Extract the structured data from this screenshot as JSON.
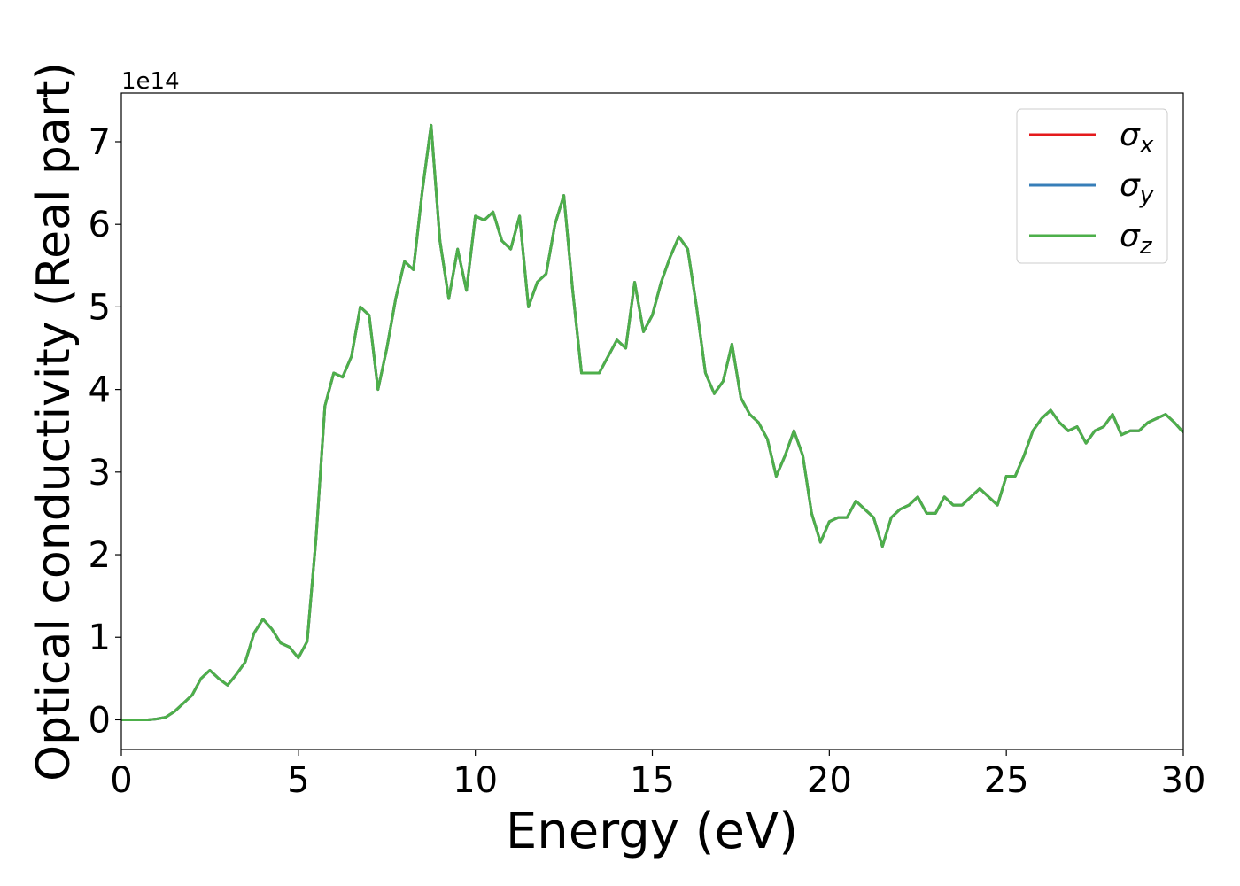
{
  "chart_data": {
    "type": "line",
    "xlabel": "Energy (eV)",
    "ylabel": "Optical conductivity (Real part)",
    "y_offset_label": "1e14",
    "xlim": [
      0,
      30
    ],
    "ylim": [
      -0.36,
      7.59
    ],
    "xticks": [
      0,
      5,
      10,
      15,
      20,
      25,
      30
    ],
    "yticks": [
      0,
      1,
      2,
      3,
      4,
      5,
      6,
      7
    ],
    "grid": false,
    "legend": "upper right",
    "x": [
      0,
      0.25,
      0.5,
      0.75,
      1,
      1.25,
      1.5,
      1.75,
      2,
      2.25,
      2.5,
      2.75,
      3,
      3.25,
      3.5,
      3.75,
      4,
      4.25,
      4.5,
      4.75,
      5,
      5.25,
      5.5,
      5.75,
      6,
      6.25,
      6.5,
      6.75,
      7,
      7.25,
      7.5,
      7.75,
      8,
      8.25,
      8.5,
      8.75,
      9,
      9.25,
      9.5,
      9.75,
      10,
      10.25,
      10.5,
      10.75,
      11,
      11.25,
      11.5,
      11.75,
      12,
      12.25,
      12.5,
      12.75,
      13,
      13.25,
      13.5,
      13.75,
      14,
      14.25,
      14.5,
      14.75,
      15,
      15.25,
      15.5,
      15.75,
      16,
      16.25,
      16.5,
      16.75,
      17,
      17.25,
      17.5,
      17.75,
      18,
      18.25,
      18.5,
      18.75,
      19,
      19.25,
      19.5,
      19.75,
      20,
      20.25,
      20.5,
      20.75,
      21,
      21.25,
      21.5,
      21.75,
      22,
      22.25,
      22.5,
      22.75,
      23,
      23.25,
      23.5,
      23.75,
      24,
      24.25,
      24.5,
      24.75,
      25,
      25.25,
      25.5,
      25.75,
      26,
      26.25,
      26.5,
      26.75,
      27,
      27.25,
      27.5,
      27.75,
      28,
      28.25,
      28.5,
      28.75,
      29,
      29.25,
      29.5,
      29.75,
      30
    ],
    "series": [
      {
        "name": "σx",
        "color": "#e41a1c",
        "values": [
          0,
          0,
          0,
          0,
          0.01,
          0.03,
          0.1,
          0.2,
          0.3,
          0.5,
          0.6,
          0.5,
          0.42,
          0.55,
          0.7,
          1.05,
          1.22,
          1.1,
          0.93,
          0.88,
          0.75,
          0.95,
          2.2,
          3.8,
          4.2,
          4.15,
          4.4,
          5.0,
          4.9,
          4.0,
          4.5,
          5.1,
          5.55,
          5.45,
          6.4,
          7.2,
          5.8,
          5.1,
          5.7,
          5.2,
          6.1,
          6.05,
          6.15,
          5.8,
          5.7,
          6.1,
          5.0,
          5.3,
          5.4,
          6.0,
          6.35,
          5.2,
          4.2,
          4.2,
          4.2,
          4.4,
          4.6,
          4.5,
          5.3,
          4.7,
          4.9,
          5.3,
          5.6,
          5.85,
          5.7,
          5.0,
          4.2,
          3.95,
          4.1,
          4.55,
          3.9,
          3.7,
          3.6,
          3.4,
          2.95,
          3.2,
          3.5,
          3.2,
          2.5,
          2.15,
          2.4,
          2.45,
          2.45,
          2.65,
          2.55,
          2.45,
          2.1,
          2.45,
          2.55,
          2.6,
          2.7,
          2.5,
          2.5,
          2.7,
          2.6,
          2.6,
          2.7,
          2.8,
          2.7,
          2.6,
          2.95,
          2.95,
          3.2,
          3.5,
          3.65,
          3.75,
          3.6,
          3.5,
          3.55,
          3.35,
          3.5,
          3.55,
          3.7,
          3.45,
          3.5,
          3.5,
          3.6,
          3.65,
          3.7,
          3.6,
          3.48
        ]
      },
      {
        "name": "σy",
        "color": "#377eb8",
        "values": [
          0,
          0,
          0,
          0,
          0.01,
          0.03,
          0.1,
          0.2,
          0.3,
          0.5,
          0.6,
          0.5,
          0.42,
          0.55,
          0.7,
          1.05,
          1.22,
          1.1,
          0.93,
          0.88,
          0.75,
          0.95,
          2.2,
          3.8,
          4.2,
          4.15,
          4.4,
          5.0,
          4.9,
          4.0,
          4.5,
          5.1,
          5.55,
          5.45,
          6.4,
          7.2,
          5.8,
          5.1,
          5.7,
          5.2,
          6.1,
          6.05,
          6.15,
          5.8,
          5.7,
          6.1,
          5.0,
          5.3,
          5.4,
          6.0,
          6.35,
          5.2,
          4.2,
          4.2,
          4.2,
          4.4,
          4.6,
          4.5,
          5.3,
          4.7,
          4.9,
          5.3,
          5.6,
          5.85,
          5.7,
          5.0,
          4.2,
          3.95,
          4.1,
          4.55,
          3.9,
          3.7,
          3.6,
          3.4,
          2.95,
          3.2,
          3.5,
          3.2,
          2.5,
          2.15,
          2.4,
          2.45,
          2.45,
          2.65,
          2.55,
          2.45,
          2.1,
          2.45,
          2.55,
          2.6,
          2.7,
          2.5,
          2.5,
          2.7,
          2.6,
          2.6,
          2.7,
          2.8,
          2.7,
          2.6,
          2.95,
          2.95,
          3.2,
          3.5,
          3.65,
          3.75,
          3.6,
          3.5,
          3.55,
          3.35,
          3.5,
          3.55,
          3.7,
          3.45,
          3.5,
          3.5,
          3.6,
          3.65,
          3.7,
          3.6,
          3.48
        ]
      },
      {
        "name": "σz",
        "color": "#4daf4a",
        "values": [
          0,
          0,
          0,
          0,
          0.01,
          0.03,
          0.1,
          0.2,
          0.3,
          0.5,
          0.6,
          0.5,
          0.42,
          0.55,
          0.7,
          1.05,
          1.22,
          1.1,
          0.93,
          0.88,
          0.75,
          0.95,
          2.2,
          3.8,
          4.2,
          4.15,
          4.4,
          5.0,
          4.9,
          4.0,
          4.5,
          5.1,
          5.55,
          5.45,
          6.4,
          7.2,
          5.8,
          5.1,
          5.7,
          5.2,
          6.1,
          6.05,
          6.15,
          5.8,
          5.7,
          6.1,
          5.0,
          5.3,
          5.4,
          6.0,
          6.35,
          5.2,
          4.2,
          4.2,
          4.2,
          4.4,
          4.6,
          4.5,
          5.3,
          4.7,
          4.9,
          5.3,
          5.6,
          5.85,
          5.7,
          5.0,
          4.2,
          3.95,
          4.1,
          4.55,
          3.9,
          3.7,
          3.6,
          3.4,
          2.95,
          3.2,
          3.5,
          3.2,
          2.5,
          2.15,
          2.4,
          2.45,
          2.45,
          2.65,
          2.55,
          2.45,
          2.1,
          2.45,
          2.55,
          2.6,
          2.7,
          2.5,
          2.5,
          2.7,
          2.6,
          2.6,
          2.7,
          2.8,
          2.7,
          2.6,
          2.95,
          2.95,
          3.2,
          3.5,
          3.65,
          3.75,
          3.6,
          3.5,
          3.55,
          3.35,
          3.5,
          3.55,
          3.7,
          3.45,
          3.5,
          3.5,
          3.6,
          3.65,
          3.7,
          3.6,
          3.48
        ]
      }
    ]
  }
}
